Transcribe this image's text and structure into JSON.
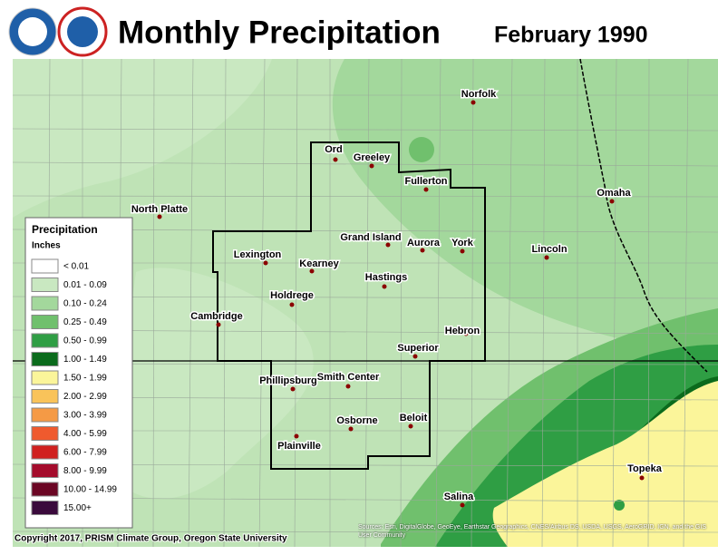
{
  "header": {
    "title": "Monthly Precipitation",
    "subtitle": "February 1990"
  },
  "legend": {
    "title": "Precipitation",
    "units": "Inches",
    "items": [
      {
        "label": "< 0.01",
        "color": "#ffffff"
      },
      {
        "label": "0.01 - 0.09",
        "color": "#c9e8c1"
      },
      {
        "label": "0.10 - 0.24",
        "color": "#a3d89c"
      },
      {
        "label": "0.25 - 0.49",
        "color": "#70c06d"
      },
      {
        "label": "0.50 - 0.99",
        "color": "#2f9e44"
      },
      {
        "label": "1.00 - 1.49",
        "color": "#0b6b1c"
      },
      {
        "label": "1.50 - 1.99",
        "color": "#fbf59a"
      },
      {
        "label": "2.00 - 2.99",
        "color": "#f9c35a"
      },
      {
        "label": "3.00 - 3.99",
        "color": "#f59a45"
      },
      {
        "label": "4.00 - 5.99",
        "color": "#ef5a2e"
      },
      {
        "label": "6.00 - 7.99",
        "color": "#d0201f"
      },
      {
        "label": "8.00 - 9.99",
        "color": "#a50c2c"
      },
      {
        "label": "10.00 - 14.99",
        "color": "#6b0624"
      },
      {
        "label": "15.00+",
        "color": "#3a0a3c"
      }
    ]
  },
  "cities": [
    "Norfolk",
    "Ord",
    "Greeley",
    "Fullerton",
    "Omaha",
    "North Platte",
    "Grand Island",
    "Aurora",
    "York",
    "Lincoln",
    "Lexington",
    "Kearney",
    "Hastings",
    "Holdrege",
    "Cambridge",
    "Hebron",
    "Superior",
    "Phillipsburg",
    "Smith Center",
    "Beloit",
    "Osborne",
    "Plainville",
    "Topeka",
    "Salina"
  ],
  "footer": {
    "copyright": "Copyright 2017, PRISM Climate Group, Oregon State University",
    "sources": "Sources: Esri, DigitalGlobe, GeoEye, Earthstar Geographics, CNES/Airbus DS, USDA, USGS, AeroGRID, IGN, and the GIS User Community"
  }
}
